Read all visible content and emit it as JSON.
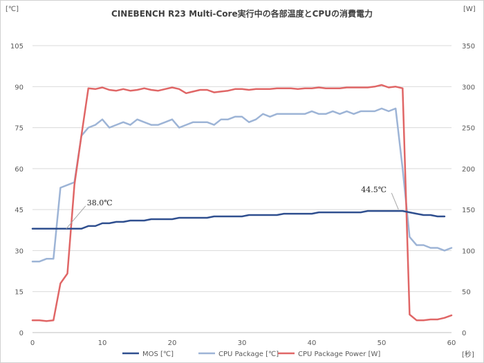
{
  "chart_data": {
    "type": "line",
    "title": "CINEBENCH R23 Multi-Core実行中の各部温度とCPUの消費電力",
    "y_left_unit": "[℃]",
    "y_right_unit": "[W]",
    "x_unit": "[秒]",
    "ylim_left": [
      0,
      105
    ],
    "ylim_right": [
      0,
      350
    ],
    "xlim": [
      0,
      60
    ],
    "y_left_ticks": [
      "0",
      "15",
      "30",
      "45",
      "60",
      "75",
      "90",
      "105"
    ],
    "y_right_ticks": [
      "0",
      "50",
      "100",
      "150",
      "200",
      "250",
      "300",
      "350"
    ],
    "x_ticks": [
      "0",
      "10",
      "20",
      "30",
      "40",
      "50",
      "60"
    ],
    "grid": true,
    "legend_position": "bottom",
    "series": [
      {
        "name": "MOS [℃]",
        "axis": "left",
        "color": "#2f4f8f",
        "x": [
          0,
          1,
          2,
          3,
          4,
          5,
          6,
          7,
          8,
          9,
          10,
          11,
          12,
          13,
          14,
          15,
          16,
          17,
          18,
          19,
          20,
          21,
          22,
          23,
          24,
          25,
          26,
          27,
          28,
          29,
          30,
          31,
          32,
          33,
          34,
          35,
          36,
          37,
          38,
          39,
          40,
          41,
          42,
          43,
          44,
          45,
          46,
          47,
          48,
          49,
          50,
          51,
          52,
          53,
          54,
          55,
          56,
          57,
          58,
          59
        ],
        "values": [
          38,
          38,
          38,
          38,
          38,
          38,
          38,
          38,
          39,
          39,
          40,
          40,
          40.5,
          40.5,
          41,
          41,
          41,
          41.5,
          41.5,
          41.5,
          41.5,
          42,
          42,
          42,
          42,
          42,
          42.5,
          42.5,
          42.5,
          42.5,
          42.5,
          43,
          43,
          43,
          43,
          43,
          43.5,
          43.5,
          43.5,
          43.5,
          43.5,
          44,
          44,
          44,
          44,
          44,
          44,
          44,
          44.5,
          44.5,
          44.5,
          44.5,
          44.5,
          44.5,
          44,
          43.5,
          43,
          43,
          42.5,
          42.5
        ]
      },
      {
        "name": "CPU Package [℃]",
        "axis": "left",
        "color": "#9db4d6",
        "x": [
          0,
          1,
          2,
          3,
          4,
          5,
          6,
          7,
          8,
          9,
          10,
          11,
          12,
          13,
          14,
          15,
          16,
          17,
          18,
          19,
          20,
          21,
          22,
          23,
          24,
          25,
          26,
          27,
          28,
          29,
          30,
          31,
          32,
          33,
          34,
          35,
          36,
          37,
          38,
          39,
          40,
          41,
          42,
          43,
          44,
          45,
          46,
          47,
          48,
          49,
          50,
          51,
          52,
          53,
          54,
          55,
          56,
          57,
          58,
          59,
          60
        ],
        "values": [
          26,
          26,
          27,
          27,
          53,
          54,
          55,
          72,
          75,
          76,
          78,
          75,
          76,
          77,
          76,
          78,
          77,
          76,
          76,
          77,
          78,
          75,
          76,
          77,
          77,
          77,
          76,
          78,
          78,
          79,
          79,
          77,
          78,
          80,
          79,
          80,
          80,
          80,
          80,
          80,
          81,
          80,
          80,
          81,
          80,
          81,
          80,
          81,
          81,
          81,
          82,
          81,
          82,
          60,
          35,
          32,
          32,
          31,
          31,
          30,
          31
        ]
      },
      {
        "name": "CPU Package Power [W]",
        "axis": "right",
        "color": "#e06666",
        "x": [
          0,
          1,
          2,
          3,
          4,
          5,
          6,
          7,
          8,
          9,
          10,
          11,
          12,
          13,
          14,
          15,
          16,
          17,
          18,
          19,
          20,
          21,
          22,
          23,
          24,
          25,
          26,
          27,
          28,
          29,
          30,
          31,
          32,
          33,
          34,
          35,
          36,
          37,
          38,
          39,
          40,
          41,
          42,
          43,
          44,
          45,
          46,
          47,
          48,
          49,
          50,
          51,
          52,
          53,
          54,
          55,
          56,
          57,
          58,
          59,
          60
        ],
        "values": [
          15,
          15,
          14,
          15,
          60,
          72,
          180,
          240,
          298,
          297,
          299,
          296,
          295,
          297,
          295,
          296,
          298,
          296,
          295,
          297,
          299,
          297,
          292,
          294,
          296,
          296,
          293,
          294,
          295,
          297,
          297,
          296,
          297,
          297,
          297,
          298,
          298,
          298,
          297,
          298,
          298,
          299,
          298,
          298,
          298,
          299,
          299,
          299,
          299,
          300,
          302,
          299,
          300,
          298,
          22,
          15,
          15,
          16,
          16,
          18,
          21
        ]
      }
    ],
    "annotations": [
      {
        "text": "38.0℃",
        "x": 8,
        "y": 38
      },
      {
        "text": "44.5℃",
        "x": 53,
        "y": 44.5
      }
    ]
  }
}
